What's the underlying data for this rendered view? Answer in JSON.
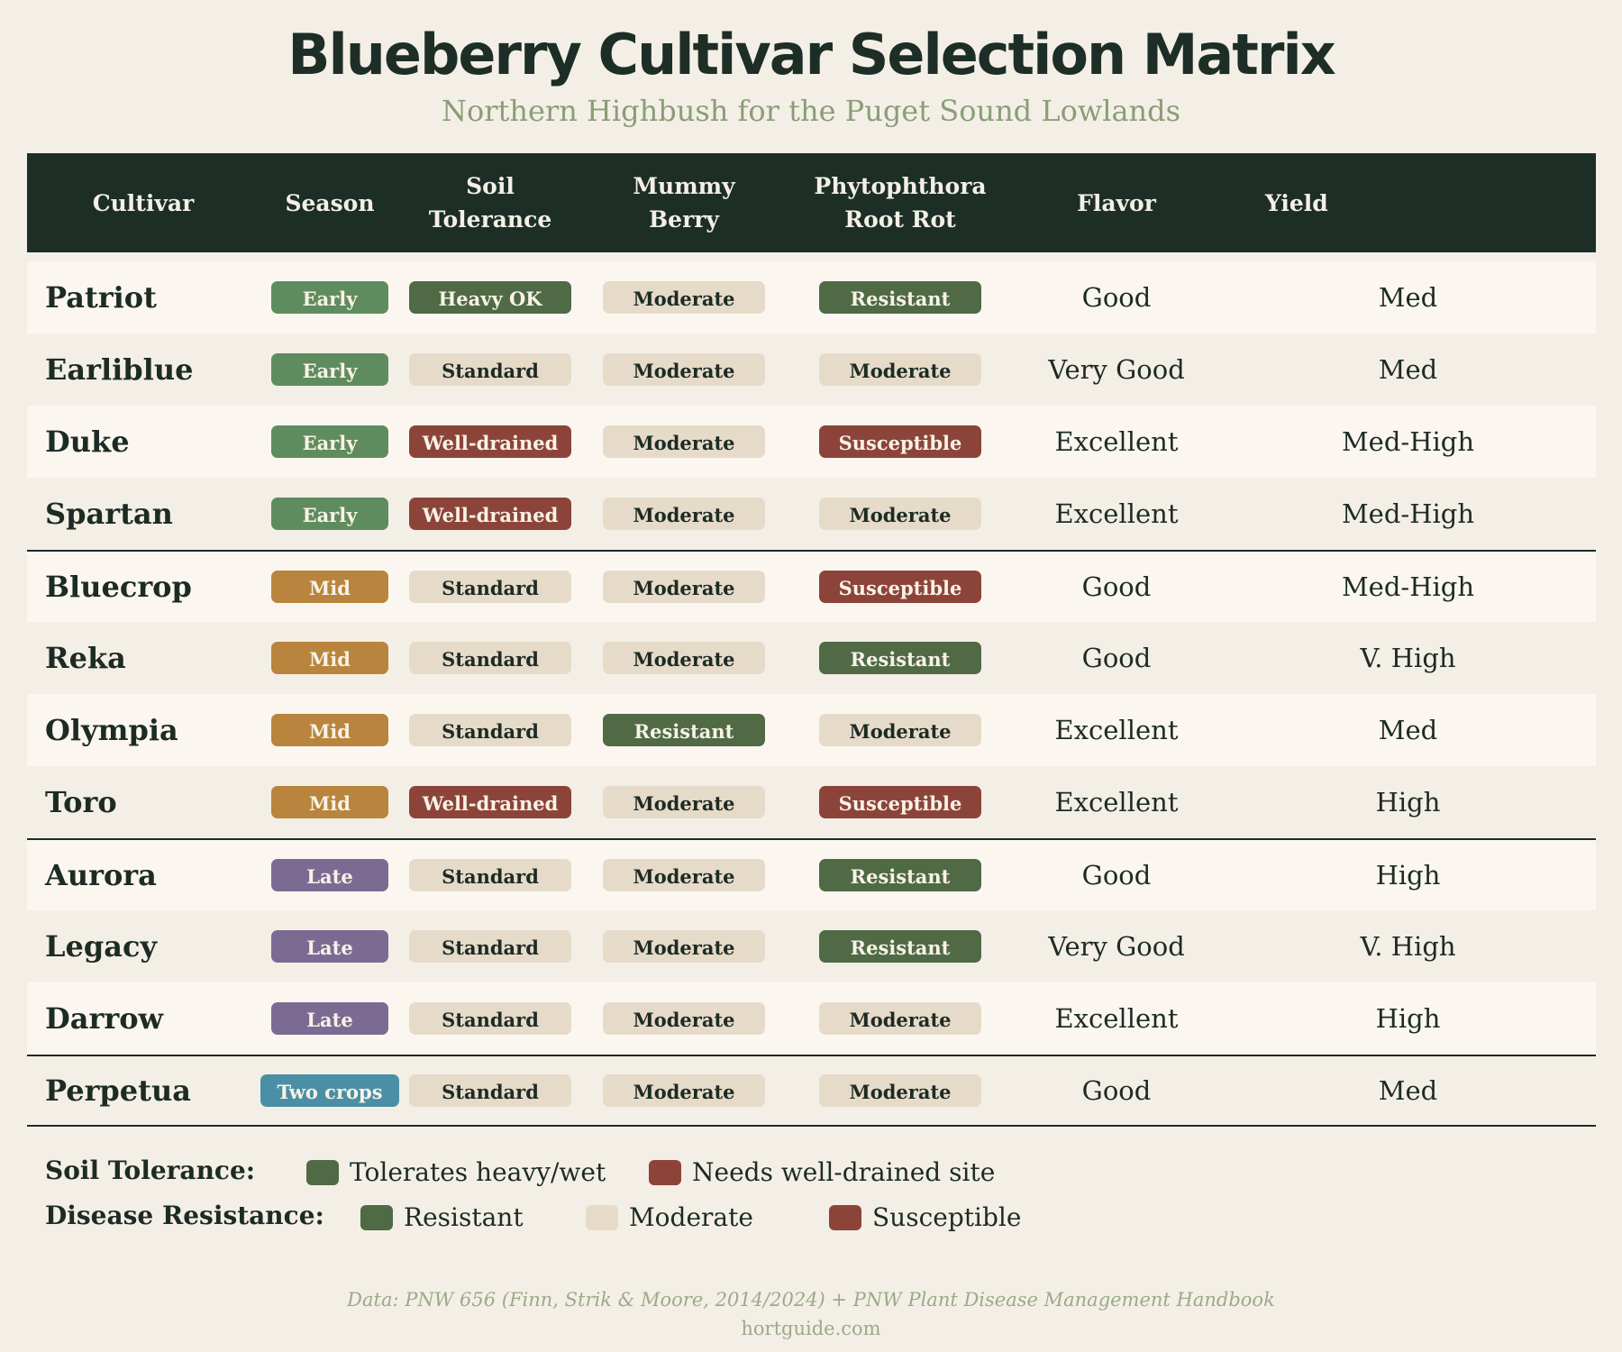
{
  "title": "Blueberry Cultivar Selection Matrix",
  "subtitle": "Northern Highbush for the Puget Sound Lowlands",
  "colors": {
    "header_bg": "#1c2e26",
    "early": "#5e8c5e",
    "mid": "#b9843d",
    "late": "#7b6b93",
    "two_crops": "#4b8fa6",
    "resistant": "#4f6a45",
    "moderate": "#e6dbc8",
    "susceptible": "#8c443a"
  },
  "columns": [
    {
      "line1": "Cultivar",
      "line2": ""
    },
    {
      "line1": "Season",
      "line2": ""
    },
    {
      "line1": "Soil",
      "line2": "Tolerance"
    },
    {
      "line1": "Mummy",
      "line2": "Berry"
    },
    {
      "line1": "Phytophthora",
      "line2": "Root Rot"
    },
    {
      "line1": "Flavor",
      "line2": ""
    },
    {
      "line1": "Yield",
      "line2": ""
    }
  ],
  "rows": [
    {
      "cultivar": "Patriot",
      "season": "Early",
      "soil": "Heavy OK",
      "mummy": "Moderate",
      "root": "Resistant",
      "flavor": "Good",
      "yield": "Med"
    },
    {
      "cultivar": "Earliblue",
      "season": "Early",
      "soil": "Standard",
      "mummy": "Moderate",
      "root": "Moderate",
      "flavor": "Very Good",
      "yield": "Med"
    },
    {
      "cultivar": "Duke",
      "season": "Early",
      "soil": "Well-drained",
      "mummy": "Moderate",
      "root": "Susceptible",
      "flavor": "Excellent",
      "yield": "Med-High"
    },
    {
      "cultivar": "Spartan",
      "season": "Early",
      "soil": "Well-drained",
      "mummy": "Moderate",
      "root": "Moderate",
      "flavor": "Excellent",
      "yield": "Med-High"
    },
    {
      "cultivar": "Bluecrop",
      "season": "Mid",
      "soil": "Standard",
      "mummy": "Moderate",
      "root": "Susceptible",
      "flavor": "Good",
      "yield": "Med-High"
    },
    {
      "cultivar": "Reka",
      "season": "Mid",
      "soil": "Standard",
      "mummy": "Moderate",
      "root": "Resistant",
      "flavor": "Good",
      "yield": "V. High"
    },
    {
      "cultivar": "Olympia",
      "season": "Mid",
      "soil": "Standard",
      "mummy": "Resistant",
      "root": "Moderate",
      "flavor": "Excellent",
      "yield": "Med"
    },
    {
      "cultivar": "Toro",
      "season": "Mid",
      "soil": "Well-drained",
      "mummy": "Moderate",
      "root": "Susceptible",
      "flavor": "Excellent",
      "yield": "High"
    },
    {
      "cultivar": "Aurora",
      "season": "Late",
      "soil": "Standard",
      "mummy": "Moderate",
      "root": "Resistant",
      "flavor": "Good",
      "yield": "High"
    },
    {
      "cultivar": "Legacy",
      "season": "Late",
      "soil": "Standard",
      "mummy": "Moderate",
      "root": "Resistant",
      "flavor": "Very Good",
      "yield": "V. High"
    },
    {
      "cultivar": "Darrow",
      "season": "Late",
      "soil": "Standard",
      "mummy": "Moderate",
      "root": "Moderate",
      "flavor": "Excellent",
      "yield": "High"
    },
    {
      "cultivar": "Perpetua",
      "season": "Two crops",
      "soil": "Standard",
      "mummy": "Moderate",
      "root": "Moderate",
      "flavor": "Good",
      "yield": "Med"
    }
  ],
  "legend": {
    "soil_label": "Soil Tolerance:",
    "soil_items": [
      "Tolerates heavy/wet",
      "Needs well-drained site"
    ],
    "disease_label": "Disease Resistance:",
    "disease_items": [
      "Resistant",
      "Moderate",
      "Susceptible"
    ]
  },
  "footer": {
    "source": "Data: PNW 656 (Finn, Strik & Moore, 2014/2024) + PNW Plant Disease Management Handbook",
    "site": "hortguide.com"
  }
}
